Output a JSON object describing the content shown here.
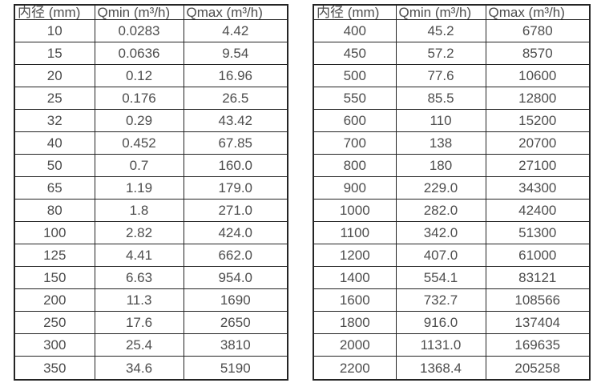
{
  "page": {
    "background": "#ffffff",
    "border_color": "#242424",
    "text_color": "#4d4d4d"
  },
  "tables": [
    {
      "name": "flow-rate-table-left",
      "headers": [
        "内径 (mm)",
        "Qmin (m³/h)",
        "Qmax (m³/h)"
      ],
      "rows": [
        [
          "10",
          "0.0283",
          "4.42"
        ],
        [
          "15",
          "0.0636",
          "9.54"
        ],
        [
          "20",
          "0.12",
          "16.96"
        ],
        [
          "25",
          "0.176",
          "26.5"
        ],
        [
          "32",
          "0.29",
          "43.42"
        ],
        [
          "40",
          "0.452",
          "67.85"
        ],
        [
          "50",
          "0.7",
          "160.0"
        ],
        [
          "65",
          "1.19",
          "179.0"
        ],
        [
          "80",
          "1.8",
          "271.0"
        ],
        [
          "100",
          "2.82",
          "424.0"
        ],
        [
          "125",
          "4.41",
          "662.0"
        ],
        [
          "150",
          "6.63",
          "954.0"
        ],
        [
          "200",
          "11.3",
          "1690"
        ],
        [
          "250",
          "17.6",
          "2650"
        ],
        [
          "300",
          "25.4",
          "3810"
        ],
        [
          "350",
          "34.6",
          "5190"
        ]
      ]
    },
    {
      "name": "flow-rate-table-right",
      "headers": [
        "内径 (mm)",
        "Qmin (m³/h)",
        "Qmax (m³/h)"
      ],
      "rows": [
        [
          "400",
          "45.2",
          "6780"
        ],
        [
          "450",
          "57.2",
          "8570"
        ],
        [
          "500",
          "77.6",
          "10600"
        ],
        [
          "550",
          "85.5",
          "12800"
        ],
        [
          "600",
          "110",
          "15200"
        ],
        [
          "700",
          "138",
          "20700"
        ],
        [
          "800",
          "180",
          "27100"
        ],
        [
          "900",
          "229.0",
          "34300"
        ],
        [
          "1000",
          "282.0",
          "42400"
        ],
        [
          "1100",
          "342.0",
          "51300"
        ],
        [
          "1200",
          "407.0",
          "61000"
        ],
        [
          "1400",
          "554.1",
          "83121"
        ],
        [
          "1600",
          "732.7",
          "108566"
        ],
        [
          "1800",
          "916.0",
          "137404"
        ],
        [
          "2000",
          "1131.0",
          "169635"
        ],
        [
          "2200",
          "1368.4",
          "205258"
        ]
      ]
    }
  ]
}
